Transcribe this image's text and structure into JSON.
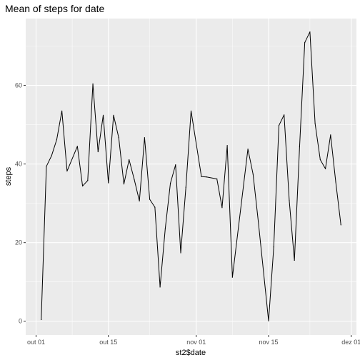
{
  "chart_data": {
    "type": "line",
    "title": "Mean of steps for date",
    "xlabel": "st2$date",
    "ylabel": "steps",
    "x_ticks": [
      "out 01",
      "out 15",
      "nov 01",
      "nov 15",
      "dez 01"
    ],
    "x_tick_dates": [
      "2012-10-01",
      "2012-10-15",
      "2012-11-01",
      "2012-11-15",
      "2012-12-01"
    ],
    "y_ticks": [
      "0",
      "20",
      "40",
      "60"
    ],
    "y_tick_values": [
      0,
      20,
      40,
      60
    ],
    "xlim": [
      "2012-09-29",
      "2012-12-02"
    ],
    "ylim": [
      -3.5,
      77
    ],
    "grid": true,
    "legend": "none",
    "series": [
      {
        "color": "#000000",
        "x": [
          "2012-10-02",
          "2012-10-03",
          "2012-10-04",
          "2012-10-05",
          "2012-10-06",
          "2012-10-07",
          "2012-10-09",
          "2012-10-10",
          "2012-10-11",
          "2012-10-12",
          "2012-10-13",
          "2012-10-14",
          "2012-10-15",
          "2012-10-16",
          "2012-10-17",
          "2012-10-18",
          "2012-10-19",
          "2012-10-20",
          "2012-10-21",
          "2012-10-22",
          "2012-10-23",
          "2012-10-24",
          "2012-10-25",
          "2012-10-26",
          "2012-10-27",
          "2012-10-28",
          "2012-10-29",
          "2012-10-30",
          "2012-10-31",
          "2012-11-02",
          "2012-11-03",
          "2012-11-05",
          "2012-11-06",
          "2012-11-07",
          "2012-11-08",
          "2012-11-11",
          "2012-11-12",
          "2012-11-13",
          "2012-11-15",
          "2012-11-16",
          "2012-11-17",
          "2012-11-18",
          "2012-11-19",
          "2012-11-20",
          "2012-11-21",
          "2012-11-22",
          "2012-11-23",
          "2012-11-24",
          "2012-11-25",
          "2012-11-26",
          "2012-11-27",
          "2012-11-28",
          "2012-11-29"
        ],
        "y": [
          0.4,
          39.4,
          42.1,
          46.2,
          53.5,
          38.2,
          44.5,
          34.4,
          35.8,
          60.4,
          43.1,
          52.4,
          35.2,
          52.4,
          46.7,
          34.9,
          41.1,
          36.1,
          30.6,
          46.7,
          31.0,
          29.0,
          8.7,
          23.5,
          35.1,
          39.8,
          17.4,
          34.1,
          53.5,
          36.8,
          36.7,
          36.2,
          28.9,
          44.7,
          11.2,
          43.8,
          37.4,
          25.5,
          0.1,
          18.9,
          49.8,
          52.5,
          30.7,
          15.5,
          44.4,
          70.9,
          73.6,
          50.3,
          41.1,
          38.8,
          47.4,
          35.4,
          24.5
        ]
      }
    ]
  }
}
